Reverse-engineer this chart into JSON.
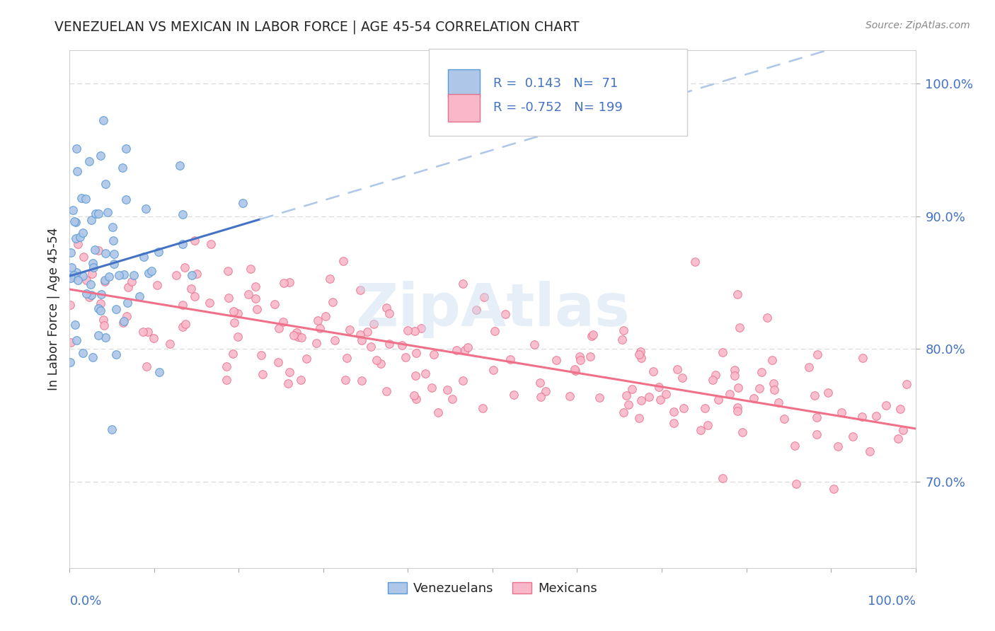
{
  "title": "VENEZUELAN VS MEXICAN IN LABOR FORCE | AGE 45-54 CORRELATION CHART",
  "source": "Source: ZipAtlas.com",
  "ylabel": "In Labor Force | Age 45-54",
  "r_venezuelan": 0.143,
  "n_venezuelan": 71,
  "r_mexican": -0.752,
  "n_mexican": 199,
  "color_ven_fill": "#aec6e8",
  "color_ven_edge": "#5b9bd5",
  "color_mex_fill": "#f9b8ca",
  "color_mex_edge": "#e8708a",
  "color_ven_line": "#4472c4",
  "color_mex_line": "#f0708a",
  "color_dashed": "#aec6e8",
  "color_axis_text": "#4472c4",
  "color_title": "#262626",
  "color_grid": "#d8d8d8",
  "color_watermark": "#c8ddf0",
  "watermark_text": "ZipAtlas",
  "seed": 12345,
  "xlim": [
    0.0,
    1.0
  ],
  "ylim": [
    0.635,
    1.025
  ],
  "yticks": [
    0.7,
    0.8,
    0.9,
    1.0
  ],
  "ytick_labels": [
    "70.0%",
    "80.0%",
    "90.0%",
    "100.0%"
  ],
  "ven_slope": 0.19,
  "ven_intercept": 0.855,
  "ven_noise": 0.042,
  "ven_n": 71,
  "mex_slope": -0.105,
  "mex_intercept": 0.845,
  "mex_noise": 0.025,
  "mex_n": 199
}
